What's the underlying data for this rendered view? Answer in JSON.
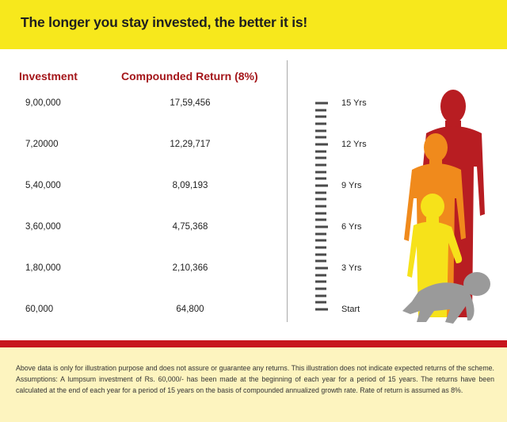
{
  "banner": {
    "title": "The longer you stay invested, the better it is!"
  },
  "chart_data": {
    "type": "table",
    "title": "The longer you stay invested, the better it is!",
    "columns": [
      "Investment",
      "Compounded Return (8%)"
    ],
    "rows": [
      {
        "period": "15 Yrs",
        "investment": "9,00,000",
        "compounded_return": "17,59,456"
      },
      {
        "period": "12 Yrs",
        "investment": "7,20000",
        "compounded_return": "12,29,717"
      },
      {
        "period": "9 Yrs",
        "investment": "5,40,000",
        "compounded_return": "8,09,193"
      },
      {
        "period": "6 Yrs",
        "investment": "3,60,000",
        "compounded_return": "4,75,368"
      },
      {
        "period": "3 Yrs",
        "investment": "1,80,000",
        "compounded_return": "2,10,366"
      },
      {
        "period": "Start",
        "investment": "60,000",
        "compounded_return": "64,800"
      }
    ],
    "scale_labels": [
      "15 Yrs",
      "12 Yrs",
      "9 Yrs",
      "6 Yrs",
      "3 Yrs",
      "Start"
    ],
    "scale_years": [
      15,
      12,
      9,
      6,
      3,
      0
    ]
  },
  "colors": {
    "banner_bg": "#f7e81c",
    "heading_red": "#a4161a",
    "bar_red": "#c7161d",
    "disclaimer_bg": "#fdf4bf",
    "figure_red": "#b81d22",
    "figure_orange": "#f08a1c",
    "figure_yellow": "#f6e21a",
    "figure_grey": "#9a9a9a"
  },
  "disclaimer": {
    "text": "Above data is only for illustration purpose and does not assure or guarantee any returns. This illustration does not indicate expected returns of the scheme. Assumptions: A lumpsum investment of Rs. 60,000/- has been made at the beginning of each year for a period of 15 years. The returns have been calculated at the end of each year for a period of 15 years on the basis of compounded annualized growth rate. Rate of return is assumed as 8%."
  }
}
